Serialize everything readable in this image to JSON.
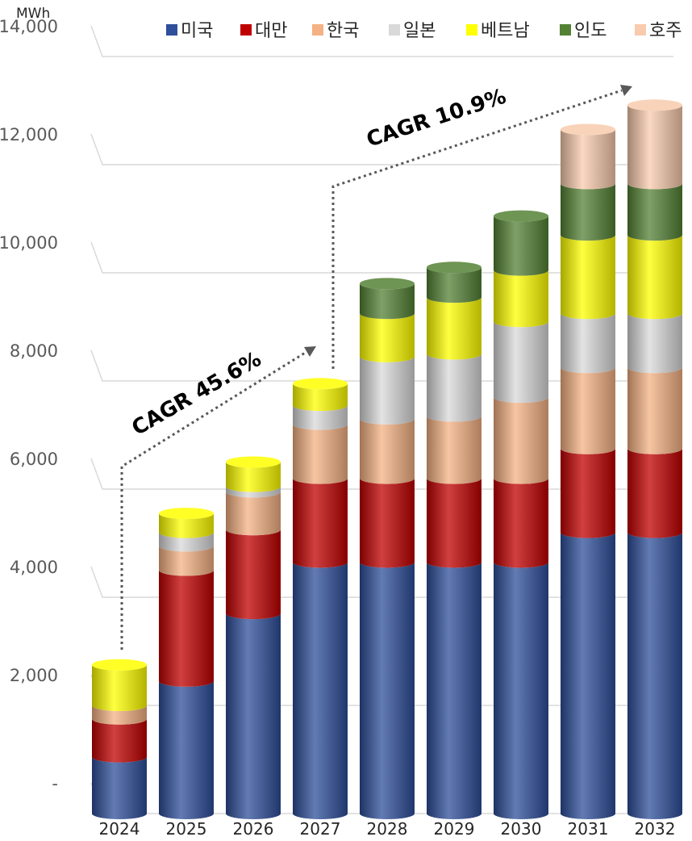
{
  "chart_data": {
    "type": "bar",
    "stacked": true,
    "unit_label": "MWh",
    "categories": [
      "2024",
      "2025",
      "2026",
      "2027",
      "2028",
      "2029",
      "2030",
      "2031",
      "2032"
    ],
    "series": [
      {
        "name": "미국",
        "color": "#2e4f9a",
        "values": [
          1050,
          2450,
          3700,
          4650,
          4650,
          4650,
          4650,
          5200,
          5200
        ]
      },
      {
        "name": "대만",
        "color": "#c00000",
        "values": [
          700,
          2050,
          1550,
          1550,
          1550,
          1550,
          1550,
          1550,
          1550
        ]
      },
      {
        "name": "한국",
        "color": "#f4b183",
        "values": [
          250,
          450,
          700,
          1000,
          1100,
          1150,
          1500,
          1500,
          1500
        ]
      },
      {
        "name": "일본",
        "color": "#d9d9d9",
        "values": [
          0,
          250,
          100,
          350,
          1150,
          1150,
          1400,
          1000,
          1000
        ]
      },
      {
        "name": "베트남",
        "color": "#ffff00",
        "values": [
          750,
          350,
          450,
          400,
          800,
          1050,
          950,
          1450,
          1450
        ]
      },
      {
        "name": "인도",
        "color": "#548235",
        "values": [
          0,
          0,
          0,
          0,
          550,
          550,
          1000,
          950,
          950
        ]
      },
      {
        "name": "호주",
        "color": "#f8cbad",
        "values": [
          0,
          0,
          0,
          0,
          0,
          0,
          0,
          1000,
          1450
        ]
      }
    ],
    "yticks": [
      "-",
      "2,000",
      "4,000",
      "6,000",
      "8,000",
      "10,000",
      "12,000",
      "14,000"
    ],
    "ylim": [
      0,
      14000
    ],
    "grid": true,
    "legend_position": "top",
    "annotations": [
      {
        "text": "CAGR 45.6%"
      },
      {
        "text": "CAGR 10.9%"
      }
    ]
  }
}
